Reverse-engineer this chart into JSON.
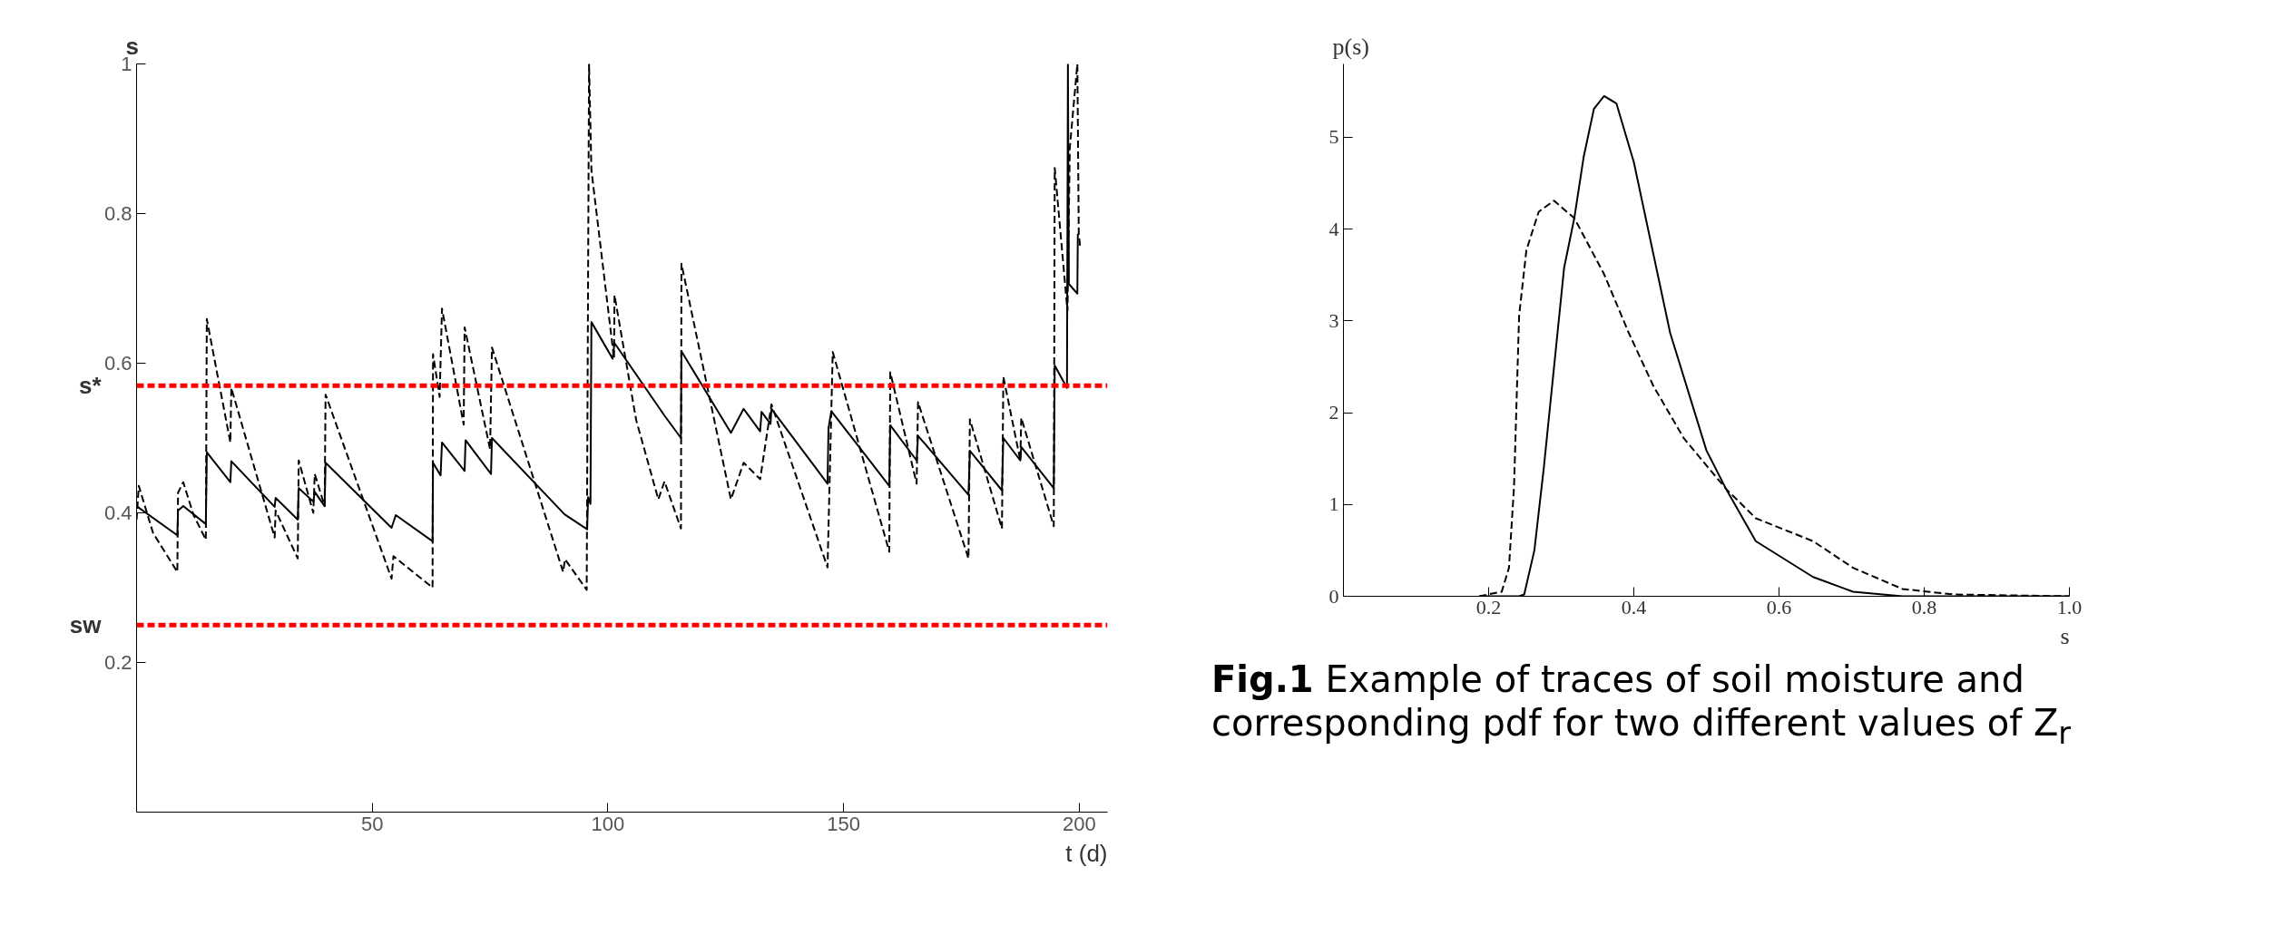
{
  "chart_data": [
    {
      "type": "line",
      "xlabel": "t (d)",
      "ylabel": "s",
      "xlim": [
        0,
        206
      ],
      "ylim": [
        0,
        1
      ],
      "xticks": [
        50,
        100,
        150,
        200
      ],
      "yticks": [
        0.2,
        0.4,
        0.6,
        0.8,
        1
      ],
      "series": [
        {
          "color": "#000000",
          "line_style": "solid",
          "x": [
            0,
            8.65,
            8.8,
            9.9,
            14.7,
            14.9,
            19.9,
            20.1,
            29.3,
            29.5,
            34.2,
            34.4,
            37.5,
            37.8,
            39.9,
            40.1,
            54.1,
            55.0,
            62.8,
            62.9,
            64.5,
            64.8,
            69.6,
            69.8,
            75.2,
            75.4,
            90.8,
            95.6,
            95.8,
            96.3,
            96.5,
            101.0,
            101.4,
            112.0,
            115.5,
            115.6,
            126.1,
            128.8,
            132.3,
            132.6,
            134.5,
            134.7,
            146.6,
            146.8,
            147.4,
            159.7,
            159.9,
            165.5,
            165.8,
            176.5,
            176.8,
            183.6,
            183.9,
            187.5,
            187.7,
            194.6,
            194.8,
            197.4,
            197.6,
            197.8,
            199.6,
            199.7
          ],
          "values": [
            0.409,
            0.37,
            0.403,
            0.409,
            0.385,
            0.481,
            0.441,
            0.469,
            0.408,
            0.42,
            0.391,
            0.433,
            0.415,
            0.428,
            0.409,
            0.467,
            0.38,
            0.397,
            0.362,
            0.467,
            0.45,
            0.494,
            0.456,
            0.497,
            0.452,
            0.5,
            0.398,
            0.378,
            0.421,
            0.412,
            0.655,
            0.606,
            0.627,
            0.53,
            0.5,
            0.616,
            0.507,
            0.539,
            0.509,
            0.535,
            0.519,
            0.539,
            0.439,
            0.513,
            0.536,
            0.436,
            0.517,
            0.47,
            0.503,
            0.424,
            0.483,
            0.43,
            0.5,
            0.47,
            0.488,
            0.433,
            0.597,
            0.567,
            1.0,
            0.706,
            0.693,
            0.773
          ]
        },
        {
          "color": "#000000",
          "line_style": "dashed",
          "x": [
            0,
            0.47,
            3.5,
            8.65,
            8.8,
            9.9,
            12.1,
            14.7,
            14.9,
            19.9,
            20.1,
            29.3,
            29.5,
            34.2,
            34.4,
            37.5,
            37.8,
            39.9,
            40.1,
            54.1,
            54.5,
            62.8,
            62.9,
            64.3,
            64.8,
            69.4,
            69.6,
            75.0,
            75.4,
            90.5,
            90.9,
            95.5,
            96.0,
            96.5,
            101.3,
            101.4,
            106.0,
            110.7,
            112.0,
            115.5,
            115.6,
            126.1,
            128.8,
            132.3,
            134.7,
            146.6,
            147.7,
            159.7,
            159.9,
            165.5,
            165.8,
            176.5,
            176.8,
            183.6,
            183.9,
            187.5,
            187.7,
            194.6,
            194.8,
            197.5,
            198.0,
            199.6,
            199.9,
            200.2
          ],
          "values": [
            0.391,
            0.436,
            0.373,
            0.321,
            0.427,
            0.441,
            0.397,
            0.364,
            0.659,
            0.494,
            0.567,
            0.367,
            0.403,
            0.339,
            0.47,
            0.4,
            0.452,
            0.409,
            0.558,
            0.312,
            0.342,
            0.3,
            0.612,
            0.555,
            0.673,
            0.518,
            0.648,
            0.485,
            0.621,
            0.321,
            0.338,
            0.297,
            1.0,
            0.858,
            0.606,
            0.691,
            0.524,
            0.418,
            0.442,
            0.379,
            0.733,
            0.418,
            0.467,
            0.445,
            0.545,
            0.327,
            0.615,
            0.348,
            0.588,
            0.439,
            0.548,
            0.339,
            0.525,
            0.379,
            0.582,
            0.47,
            0.527,
            0.382,
            0.861,
            0.67,
            0.888,
            1.0,
            0.773,
            0.755
          ]
        }
      ],
      "ref_lines": [
        {
          "axis": "y",
          "value": 0.57,
          "label": "s*",
          "color": "#ff0000",
          "line_style": "dashed"
        },
        {
          "axis": "y",
          "value": 0.25,
          "label": "sw",
          "color": "#ff0000",
          "line_style": "dashed"
        }
      ]
    },
    {
      "type": "line",
      "xlabel": "s",
      "ylabel": "p(s)",
      "xlim": [
        0,
        1
      ],
      "ylim": [
        0,
        5.8
      ],
      "xticks": [
        0.2,
        0.4,
        0.6,
        0.8,
        {
          "value": 1,
          "label": "1.0"
        }
      ],
      "yticks": [
        0,
        1,
        2,
        3,
        4,
        5
      ],
      "series": [
        {
          "color": "#000000",
          "line_style": "solid",
          "x": [
            0.187,
            0.242,
            0.249,
            0.263,
            0.276,
            0.29,
            0.304,
            0.318,
            0.331,
            0.345,
            0.359,
            0.376,
            0.4,
            0.45,
            0.5,
            0.527,
            0.568,
            0.647,
            0.702,
            0.77,
            1.0
          ],
          "values": [
            0,
            0,
            0.02,
            0.5,
            1.4,
            2.49,
            3.58,
            4.12,
            4.79,
            5.31,
            5.45,
            5.37,
            4.73,
            2.87,
            1.59,
            1.17,
            0.6,
            0.21,
            0.05,
            0,
            0
          ]
        },
        {
          "color": "#000000",
          "line_style": "dashed",
          "x": [
            0.187,
            0.218,
            0.228,
            0.235,
            0.242,
            0.252,
            0.269,
            0.29,
            0.318,
            0.359,
            0.393,
            0.427,
            0.469,
            0.527,
            0.568,
            0.647,
            0.702,
            0.77,
            0.84,
            1.0
          ],
          "values": [
            0,
            0.05,
            0.31,
            1.2,
            3.06,
            3.77,
            4.19,
            4.31,
            4.12,
            3.51,
            2.87,
            2.29,
            1.72,
            1.17,
            0.85,
            0.6,
            0.31,
            0.08,
            0.02,
            0
          ]
        }
      ],
      "annotations": [
        "Fig.1 Example of traces of soil moisture and corresponding pdf for two different values of Z$_{r}$"
      ]
    }
  ]
}
